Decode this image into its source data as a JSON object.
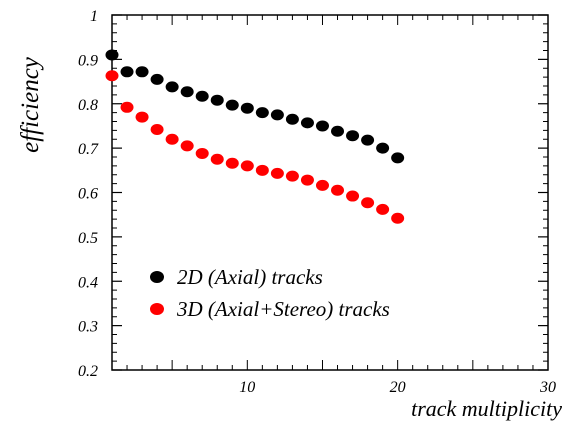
{
  "chart_data": {
    "type": "scatter",
    "title": "",
    "xlabel": "track multiplicity",
    "ylabel": "efficiency",
    "xlim": [
      1,
      30
    ],
    "ylim": [
      0.2,
      1.0
    ],
    "x_ticks": [
      10,
      20,
      30
    ],
    "x_tick_labels": [
      "10",
      "20",
      "30"
    ],
    "y_ticks": [
      0.2,
      0.3,
      0.4,
      0.5,
      0.6,
      0.7,
      0.8,
      0.9,
      1.0
    ],
    "y_tick_labels": [
      "0.2",
      "0.3",
      "0.4",
      "0.5",
      "0.6",
      "0.7",
      "0.8",
      "0.9",
      "1"
    ],
    "grid": false,
    "legend_position": "bottom-left",
    "series": [
      {
        "name": "2D (Axial) tracks",
        "color": "#000000",
        "points": [
          [
            1,
            0.91
          ],
          [
            2,
            0.872
          ],
          [
            3,
            0.872
          ],
          [
            4,
            0.855
          ],
          [
            5,
            0.838
          ],
          [
            6,
            0.827
          ],
          [
            7,
            0.817
          ],
          [
            8,
            0.808
          ],
          [
            9,
            0.797
          ],
          [
            10,
            0.79
          ],
          [
            11,
            0.78
          ],
          [
            12,
            0.775
          ],
          [
            13,
            0.765
          ],
          [
            14,
            0.757
          ],
          [
            15,
            0.75
          ],
          [
            16,
            0.738
          ],
          [
            17,
            0.728
          ],
          [
            18,
            0.718
          ],
          [
            19,
            0.7
          ],
          [
            20,
            0.678
          ]
        ]
      },
      {
        "name": "3D (Axial+Stereo) tracks",
        "color": "#ff0000",
        "points": [
          [
            1,
            0.863
          ],
          [
            2,
            0.792
          ],
          [
            3,
            0.77
          ],
          [
            4,
            0.742
          ],
          [
            5,
            0.72
          ],
          [
            6,
            0.705
          ],
          [
            7,
            0.688
          ],
          [
            8,
            0.675
          ],
          [
            9,
            0.666
          ],
          [
            10,
            0.66
          ],
          [
            11,
            0.65
          ],
          [
            12,
            0.643
          ],
          [
            13,
            0.637
          ],
          [
            14,
            0.628
          ],
          [
            15,
            0.616
          ],
          [
            16,
            0.605
          ],
          [
            17,
            0.592
          ],
          [
            18,
            0.577
          ],
          [
            19,
            0.562
          ],
          [
            20,
            0.542
          ]
        ]
      }
    ]
  }
}
